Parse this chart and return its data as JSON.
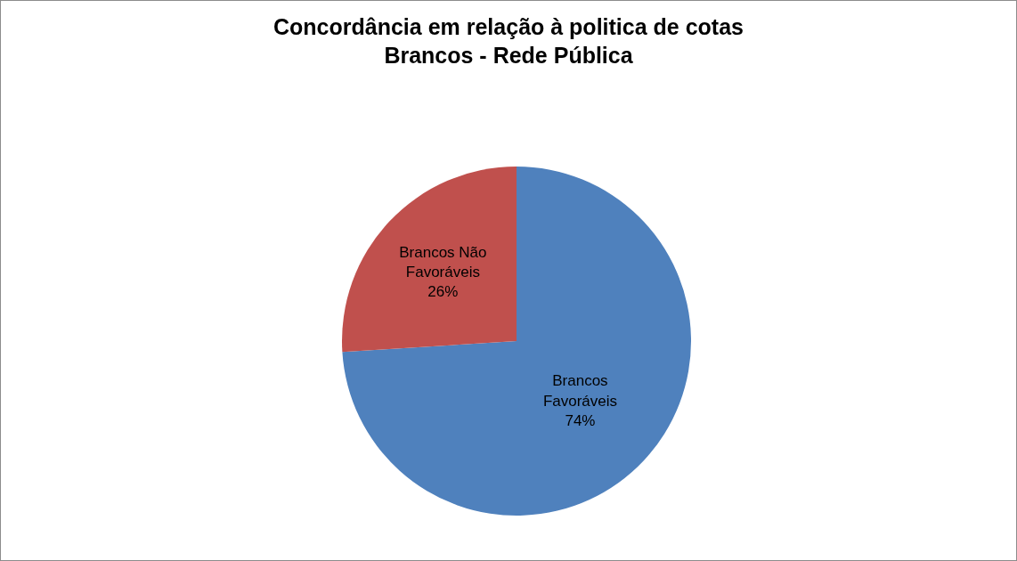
{
  "chart_data": {
    "type": "pie",
    "title": "Concordância em relação à politica de cotas\nBrancos - Rede Pública",
    "categories": [
      "Brancos Favoráveis",
      "Brancos Não Favoráveis"
    ],
    "values": [
      74,
      26
    ],
    "value_labels": [
      "74%",
      "26%"
    ],
    "colors": [
      "#4f81bd",
      "#c0504d"
    ],
    "legend": false
  }
}
